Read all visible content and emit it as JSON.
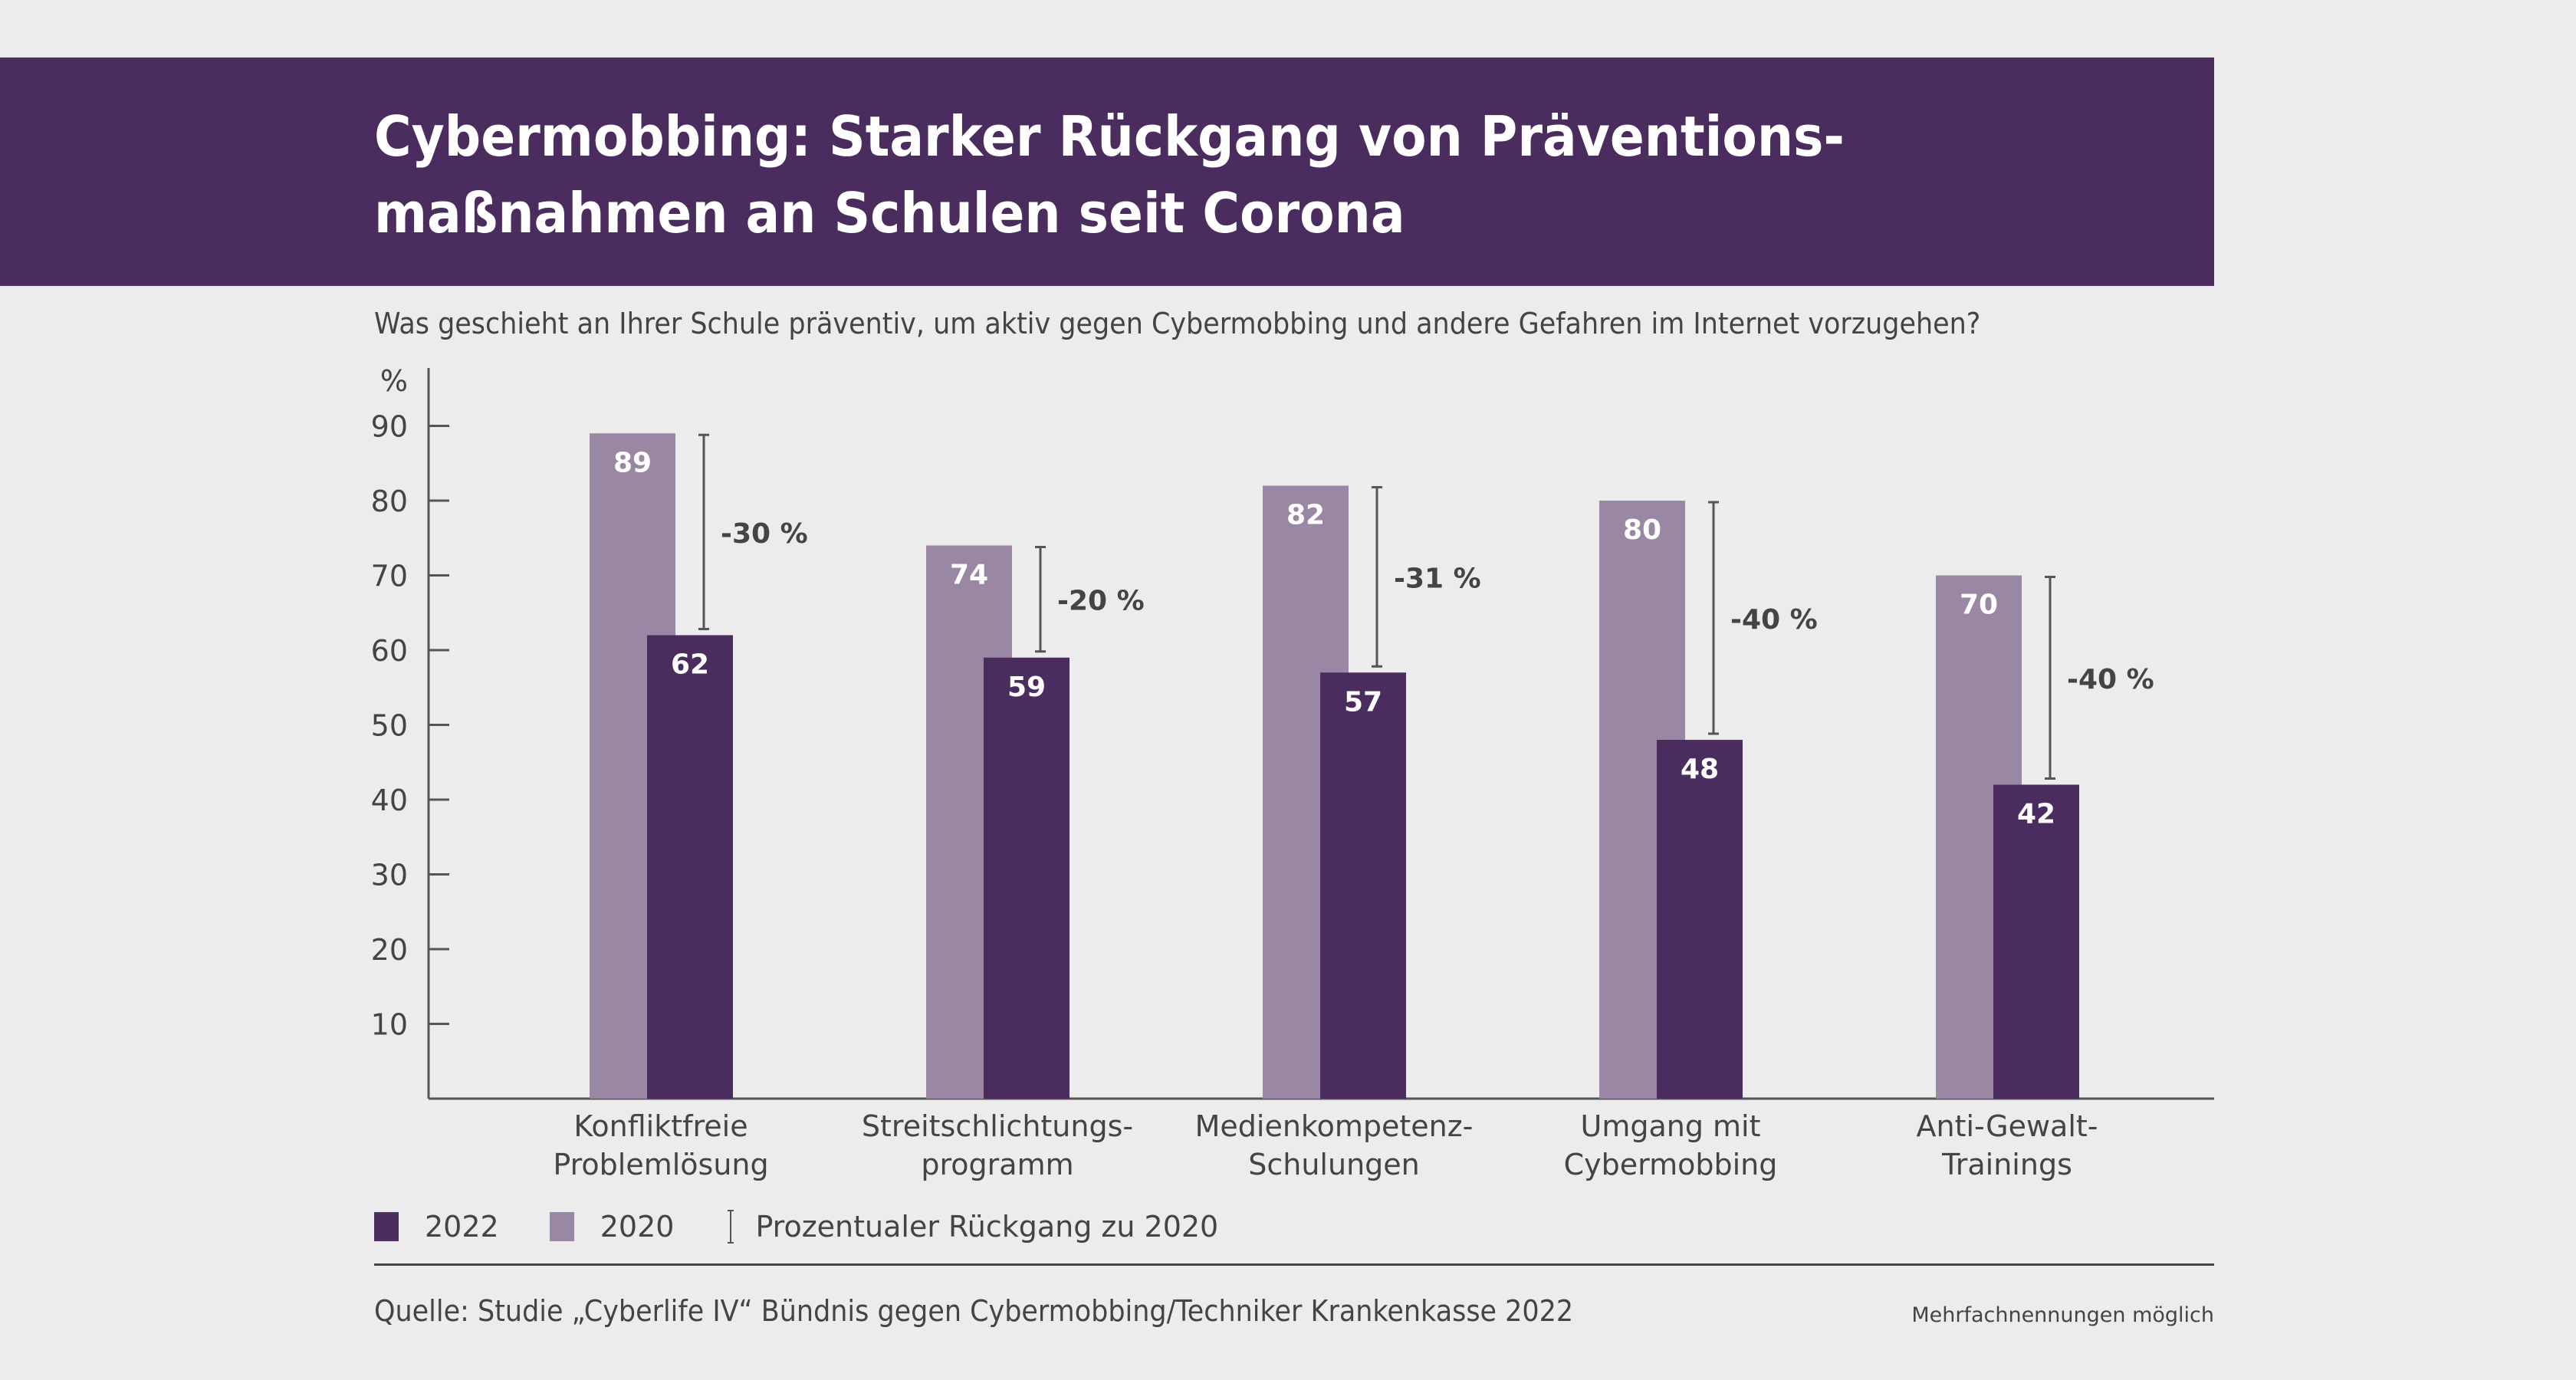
{
  "header": {
    "title": "Cybermobbing: Starker Rückgang von Präventions-\nmaßnahmen an Schulen seit Corona",
    "question": "Was geschieht an Ihrer Schule präventiv, um aktiv gegen Cybermobbing und andere Gefahren im Internet vorzugehen?"
  },
  "colors": {
    "banner": "#4a2d5e",
    "series_2022": "#4a2d5e",
    "series_2020": "#9a87a3",
    "text": "#444444",
    "background": "#ececec"
  },
  "legend": {
    "item_2022": "2022",
    "item_2020": "2020",
    "item_decline": "Prozentualer Rückgang zu 2020"
  },
  "footer": {
    "source": "Quelle: Studie „Cyberlife IV“ Bündnis gegen Cybermobbing/Techniker Krankenkasse 2022",
    "note": "Mehrfachnennungen möglich"
  },
  "chart_data": {
    "type": "bar",
    "title": "Cybermobbing: Starker Rückgang von Präventionsmaßnahmen an Schulen seit Corona",
    "subtitle": "Was geschieht an Ihrer Schule präventiv, um aktiv gegen Cybermobbing und andere Gefahren im Internet vorzugehen?",
    "ylabel": "%",
    "xlabel": "",
    "ylim": [
      0,
      95
    ],
    "yticks": [
      10,
      20,
      30,
      40,
      50,
      60,
      70,
      80,
      90
    ],
    "grid": false,
    "legend_position": "bottom-left",
    "categories": [
      [
        "Konfliktfreie",
        "Problemlösung"
      ],
      [
        "Streitschlichtungs-",
        "programm"
      ],
      [
        "Medienkompetenz-",
        "Schulungen"
      ],
      [
        "Umgang mit",
        "Cybermobbing"
      ],
      [
        "Anti-Gewalt-",
        "Trainings"
      ]
    ],
    "series": [
      {
        "name": "2020",
        "values": [
          89,
          74,
          82,
          80,
          70
        ]
      },
      {
        "name": "2022",
        "values": [
          62,
          59,
          57,
          48,
          42
        ]
      }
    ],
    "decline_labels": [
      "-30 %",
      "-20 %",
      "-31 %",
      "-40 %",
      "-40 %"
    ]
  }
}
